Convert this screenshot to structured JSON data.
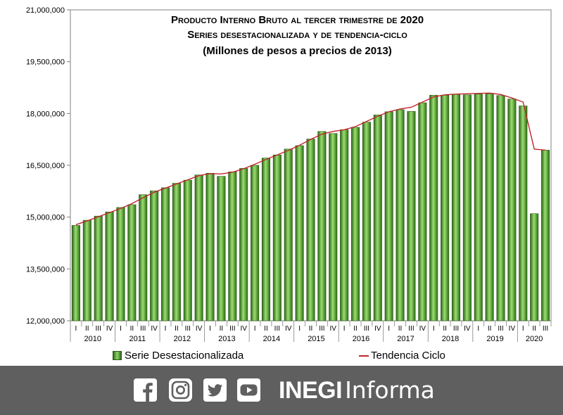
{
  "chart_data": {
    "type": "bar",
    "title": "Producto Interno Bruto  al tercer trimestre de 2020",
    "subtitle": "Series desestacionalizada y de tendencia-ciclo",
    "units": "(Millones de pesos a precios de 2013)",
    "ylim": [
      12000000,
      21000000
    ],
    "yticks": [
      12000000,
      13500000,
      15000000,
      16500000,
      18000000,
      19500000,
      21000000
    ],
    "ytick_labels": [
      "12,000,000",
      "13,500,000",
      "15,000,000",
      "16,500,000",
      "18,000,000",
      "19,500,000",
      "21,000,000"
    ],
    "quarter_labels": [
      "I",
      "II",
      "III",
      "IV"
    ],
    "years": [
      "2010",
      "2011",
      "2012",
      "2013",
      "2014",
      "2015",
      "2016",
      "2017",
      "2018",
      "2019",
      "2020"
    ],
    "grid": false,
    "legend_position": "bottom",
    "series": [
      {
        "name": "Serie Desestacionalizada",
        "type": "bar",
        "color": "#4f9a2e",
        "values": [
          14760000,
          14910000,
          15030000,
          15150000,
          15280000,
          15360000,
          15650000,
          15760000,
          15850000,
          15980000,
          16070000,
          16220000,
          16270000,
          16180000,
          16310000,
          16410000,
          16500000,
          16710000,
          16800000,
          16970000,
          17070000,
          17260000,
          17480000,
          17420000,
          17530000,
          17600000,
          17750000,
          17960000,
          18050000,
          18110000,
          18060000,
          18310000,
          18530000,
          18530000,
          18560000,
          18540000,
          18560000,
          18570000,
          18520000,
          18420000,
          18220000,
          15100000,
          16940000
        ]
      },
      {
        "name": "Tendencia Ciclo",
        "type": "line",
        "color": "#c0262b",
        "values": [
          14780000,
          14890000,
          15010000,
          15130000,
          15250000,
          15390000,
          15560000,
          15720000,
          15840000,
          15960000,
          16080000,
          16200000,
          16260000,
          16250000,
          16300000,
          16400000,
          16530000,
          16670000,
          16800000,
          16930000,
          17080000,
          17250000,
          17400000,
          17480000,
          17530000,
          17620000,
          17770000,
          17920000,
          18050000,
          18130000,
          18180000,
          18330000,
          18480000,
          18540000,
          18560000,
          18570000,
          18580000,
          18590000,
          18550000,
          18450000,
          18330000,
          16970000,
          16940000
        ]
      }
    ]
  },
  "footer": {
    "brand_bold": "INEGI",
    "brand_light": "Informa",
    "social_icons": [
      "facebook-icon",
      "instagram-icon",
      "twitter-icon",
      "youtube-icon"
    ]
  }
}
